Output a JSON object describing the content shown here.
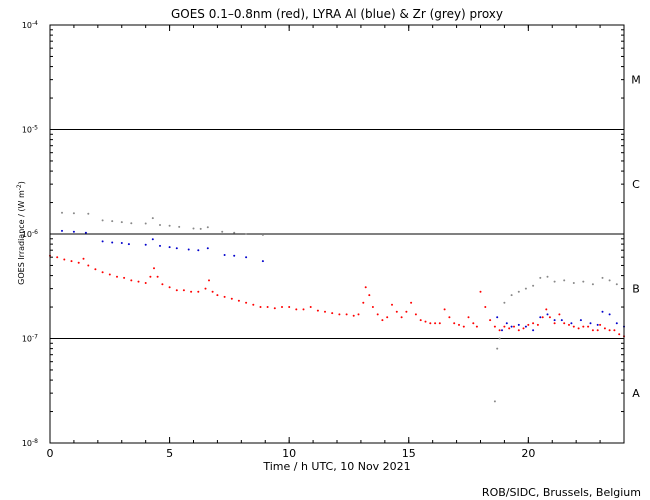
{
  "chart_data": {
    "type": "scatter",
    "title": "GOES 0.1–0.8nm (red), LYRA Al (blue) & Zr (grey) proxy",
    "xlabel": "Time / h UTC, 10 Nov 2021",
    "ylabel": "GOES Irradiance / (W m",
    "ylabel_sup": "-2",
    "ylabel_close": ")",
    "credit": "ROB/SIDC, Brussels, Belgium",
    "xlim": [
      0,
      24
    ],
    "x_ticks": [
      0,
      5,
      10,
      15,
      20
    ],
    "y_scale": "log",
    "ylim": [
      1e-08,
      0.0001
    ],
    "y_ticks": [
      {
        "value": 1e-08,
        "base": "10",
        "exp": "-8"
      },
      {
        "value": 1e-07,
        "base": "10",
        "exp": "-7"
      },
      {
        "value": 1e-06,
        "base": "10",
        "exp": "-6"
      },
      {
        "value": 1e-05,
        "base": "10",
        "exp": "-5"
      },
      {
        "value": 0.0001,
        "base": "10",
        "exp": "-4"
      }
    ],
    "class_lines": [
      1e-07,
      1e-06,
      1e-05
    ],
    "class_labels": [
      {
        "label": "A",
        "value": 3e-08
      },
      {
        "label": "B",
        "value": 3e-07
      },
      {
        "label": "C",
        "value": 3e-06
      },
      {
        "label": "M",
        "value": 3e-05
      }
    ],
    "series": [
      {
        "color": "#ff0000",
        "x": [
          0.0,
          0.3,
          0.6,
          0.9,
          1.2,
          1.4,
          1.6,
          1.9,
          2.2,
          2.5,
          2.8,
          3.1,
          3.4,
          3.7,
          4.0,
          4.2,
          4.35,
          4.5,
          4.7,
          5.0,
          5.3,
          5.6,
          5.9,
          6.2,
          6.5,
          6.65,
          6.8,
          7.0,
          7.3,
          7.6,
          7.9,
          8.2,
          8.5,
          8.8,
          9.1,
          9.4,
          9.7,
          10.0,
          10.3,
          10.6,
          10.9,
          11.2,
          11.5,
          11.8,
          12.1,
          12.4,
          12.7,
          12.9,
          13.1,
          13.2,
          13.35,
          13.5,
          13.7,
          13.9,
          14.1,
          14.3,
          14.5,
          14.7,
          14.9,
          15.1,
          15.3,
          15.5,
          15.7,
          15.9,
          16.1,
          16.3,
          16.5,
          16.7,
          16.9,
          17.1,
          17.3,
          17.5,
          17.7,
          17.85,
          18.0,
          18.2,
          18.4,
          18.6,
          18.8,
          19.0,
          19.2,
          19.4,
          19.6,
          19.8,
          20.0,
          20.2,
          20.4,
          20.6,
          20.75,
          20.9,
          21.1,
          21.3,
          21.5,
          21.7,
          21.9,
          22.1,
          22.3,
          22.5,
          22.7,
          22.9,
          23.0,
          23.2,
          23.4,
          23.6,
          23.8,
          24.0
        ],
        "y": [
          6.2e-07,
          6e-07,
          5.7e-07,
          5.5e-07,
          5.3e-07,
          5.8e-07,
          5e-07,
          4.6e-07,
          4.3e-07,
          4.1e-07,
          3.9e-07,
          3.8e-07,
          3.6e-07,
          3.5e-07,
          3.4e-07,
          3.9e-07,
          4.7e-07,
          3.9e-07,
          3.3e-07,
          3.1e-07,
          2.9e-07,
          2.9e-07,
          2.8e-07,
          2.8e-07,
          3e-07,
          3.6e-07,
          2.8e-07,
          2.6e-07,
          2.5e-07,
          2.4e-07,
          2.3e-07,
          2.2e-07,
          2.1e-07,
          2e-07,
          2e-07,
          1.95e-07,
          2e-07,
          2e-07,
          1.9e-07,
          1.9e-07,
          2e-07,
          1.85e-07,
          1.8e-07,
          1.75e-07,
          1.7e-07,
          1.7e-07,
          1.65e-07,
          1.7e-07,
          2.2e-07,
          3.1e-07,
          2.6e-07,
          2e-07,
          1.7e-07,
          1.5e-07,
          1.6e-07,
          2.1e-07,
          1.8e-07,
          1.6e-07,
          1.8e-07,
          2.2e-07,
          1.7e-07,
          1.5e-07,
          1.45e-07,
          1.4e-07,
          1.4e-07,
          1.4e-07,
          1.9e-07,
          1.6e-07,
          1.4e-07,
          1.35e-07,
          1.3e-07,
          1.6e-07,
          1.4e-07,
          1.3e-07,
          2.8e-07,
          2e-07,
          1.5e-07,
          1.3e-07,
          1.2e-07,
          1.3e-07,
          1.25e-07,
          1.3e-07,
          1.2e-07,
          1.25e-07,
          1.35e-07,
          1.4e-07,
          1.35e-07,
          1.6e-07,
          1.9e-07,
          1.6e-07,
          1.4e-07,
          1.7e-07,
          1.4e-07,
          1.35e-07,
          1.3e-07,
          1.25e-07,
          1.3e-07,
          1.3e-07,
          1.2e-07,
          1.2e-07,
          1.35e-07,
          1.25e-07,
          1.2e-07,
          1.2e-07,
          1.1e-07,
          1.05e-07
        ]
      },
      {
        "color": "#0000cc",
        "x": [
          0.5,
          1.0,
          1.5,
          2.2,
          2.6,
          3.0,
          3.3,
          4.0,
          4.3,
          4.6,
          5.0,
          5.3,
          5.8,
          6.2,
          6.6,
          7.3,
          7.7,
          8.2,
          8.9,
          18.7,
          18.9,
          19.1,
          19.3,
          19.6,
          19.9,
          20.2,
          20.5,
          20.8,
          21.1,
          21.4,
          21.8,
          22.2,
          22.6,
          22.9,
          23.1,
          23.4,
          23.7,
          24.0
        ],
        "y": [
          1.07e-06,
          1.05e-06,
          1.03e-06,
          8.5e-07,
          8.3e-07,
          8.2e-07,
          8e-07,
          7.9e-07,
          8.9e-07,
          7.7e-07,
          7.5e-07,
          7.3e-07,
          7.1e-07,
          7e-07,
          7.3e-07,
          6.3e-07,
          6.2e-07,
          6e-07,
          5.5e-07,
          1.6e-07,
          1.2e-07,
          1.4e-07,
          1.3e-07,
          1.35e-07,
          1.3e-07,
          1.2e-07,
          1.6e-07,
          1.7e-07,
          1.5e-07,
          1.5e-07,
          1.4e-07,
          1.5e-07,
          1.4e-07,
          1.35e-07,
          1.8e-07,
          1.7e-07,
          1.4e-07,
          1.3e-07
        ]
      },
      {
        "color": "#888888",
        "x": [
          0.5,
          1.0,
          1.6,
          2.2,
          2.6,
          3.0,
          3.4,
          4.0,
          4.3,
          4.6,
          5.0,
          5.4,
          6.0,
          6.3,
          6.6,
          7.2,
          7.7,
          8.2,
          8.9,
          19.0,
          19.3,
          19.6,
          19.9,
          20.2,
          20.5,
          20.8,
          21.1,
          21.5,
          21.9,
          22.3,
          22.7,
          23.1,
          23.4,
          23.7
        ],
        "y": [
          1.6e-06,
          1.58e-06,
          1.56e-06,
          1.35e-06,
          1.33e-06,
          1.3e-06,
          1.27e-06,
          1.26e-06,
          1.42e-06,
          1.22e-06,
          1.2e-06,
          1.17e-06,
          1.13e-06,
          1.12e-06,
          1.16e-06,
          1.05e-06,
          1.03e-06,
          1e-06,
          9.8e-07,
          2.2e-07,
          2.6e-07,
          2.8e-07,
          3e-07,
          3.2e-07,
          3.8e-07,
          3.9e-07,
          3.5e-07,
          3.6e-07,
          3.4e-07,
          3.5e-07,
          3.3e-07,
          3.8e-07,
          3.6e-07,
          3.3e-07
        ]
      },
      {
        "color": "#888888",
        "x": [
          18.6,
          18.7,
          18.8
        ],
        "y": [
          2.5e-08,
          8e-08,
          1e-07
        ]
      }
    ]
  }
}
